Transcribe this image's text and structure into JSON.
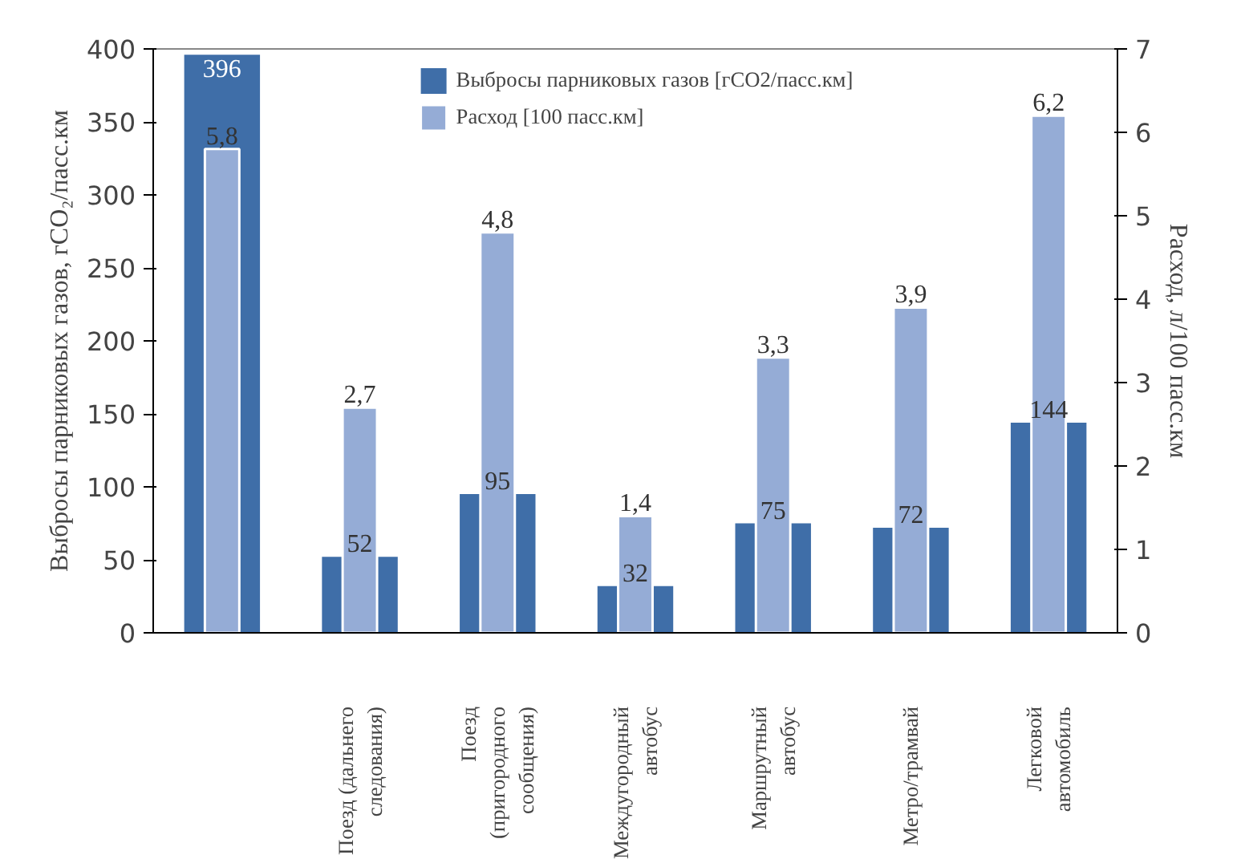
{
  "chart_data": {
    "type": "bar",
    "ylabel": "Выбросы парниковых газов, гCO₂/пасс.км",
    "y2label": "Расход, л/100 пасс.км",
    "categories": [
      null,
      "Поезд (дальнего следования)",
      "Поезд (пригородного сообщения)",
      "Междугородный автобус",
      "Маршрутный автобус",
      "Метро/трамвай",
      "Легковой автомобиль"
    ],
    "series": [
      {
        "name": "Выбросы парниковых газов [гCO2/пасс.км]",
        "color": "#3f6ea8",
        "values": [
          396,
          52,
          95,
          32,
          75,
          72,
          144
        ]
      },
      {
        "name": "Расход [100 пасс.км]",
        "color": "#95acd6",
        "axis": "y2",
        "values": [
          5.8,
          2.7,
          4.8,
          1.4,
          3.3,
          3.9,
          6.2
        ],
        "value_labels": [
          "5,8",
          "2,7",
          "4,8",
          "1,4",
          "3,3",
          "3,9",
          "6,2"
        ]
      }
    ],
    "ylim": [
      0,
      400
    ],
    "yticks": [
      0,
      50,
      100,
      150,
      200,
      250,
      300,
      350,
      400
    ],
    "y2lim": [
      0,
      7
    ],
    "y2ticks": [
      0,
      1,
      2,
      3,
      4,
      5,
      6,
      7
    ],
    "data_labels": true,
    "legend": "top",
    "grid": false
  }
}
